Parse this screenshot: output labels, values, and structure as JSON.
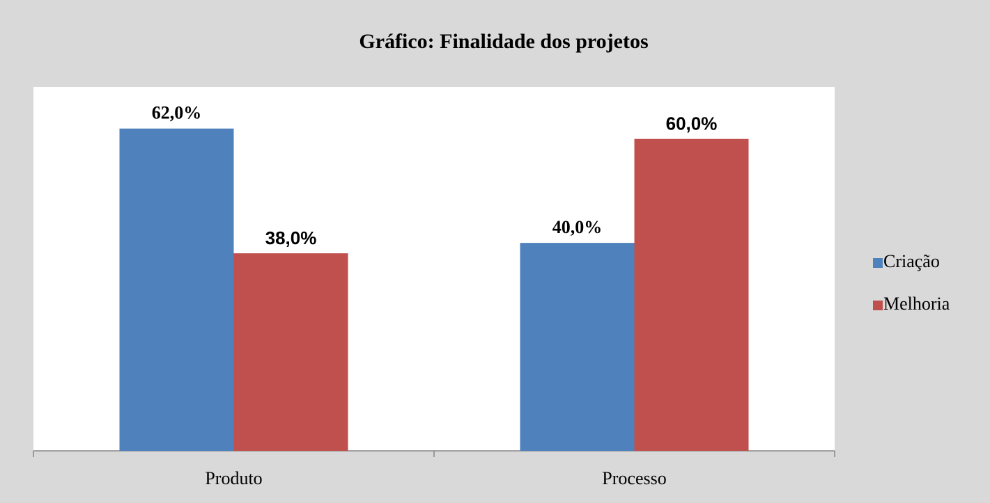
{
  "chart_data": {
    "type": "bar",
    "title": "Gráfico: Finalidade dos projetos",
    "categories": [
      "Produto",
      "Processo"
    ],
    "series": [
      {
        "name": "Criação",
        "color": "#4f81bd",
        "values": [
          62,
          40
        ],
        "value_labels": [
          "62,0%",
          "40,0%"
        ]
      },
      {
        "name": "Melhoria",
        "color": "#c0504d",
        "values": [
          38,
          60
        ],
        "value_labels": [
          "38,0%",
          "60,0%"
        ]
      }
    ],
    "ylim": [
      0,
      70
    ],
    "legend": "right"
  }
}
